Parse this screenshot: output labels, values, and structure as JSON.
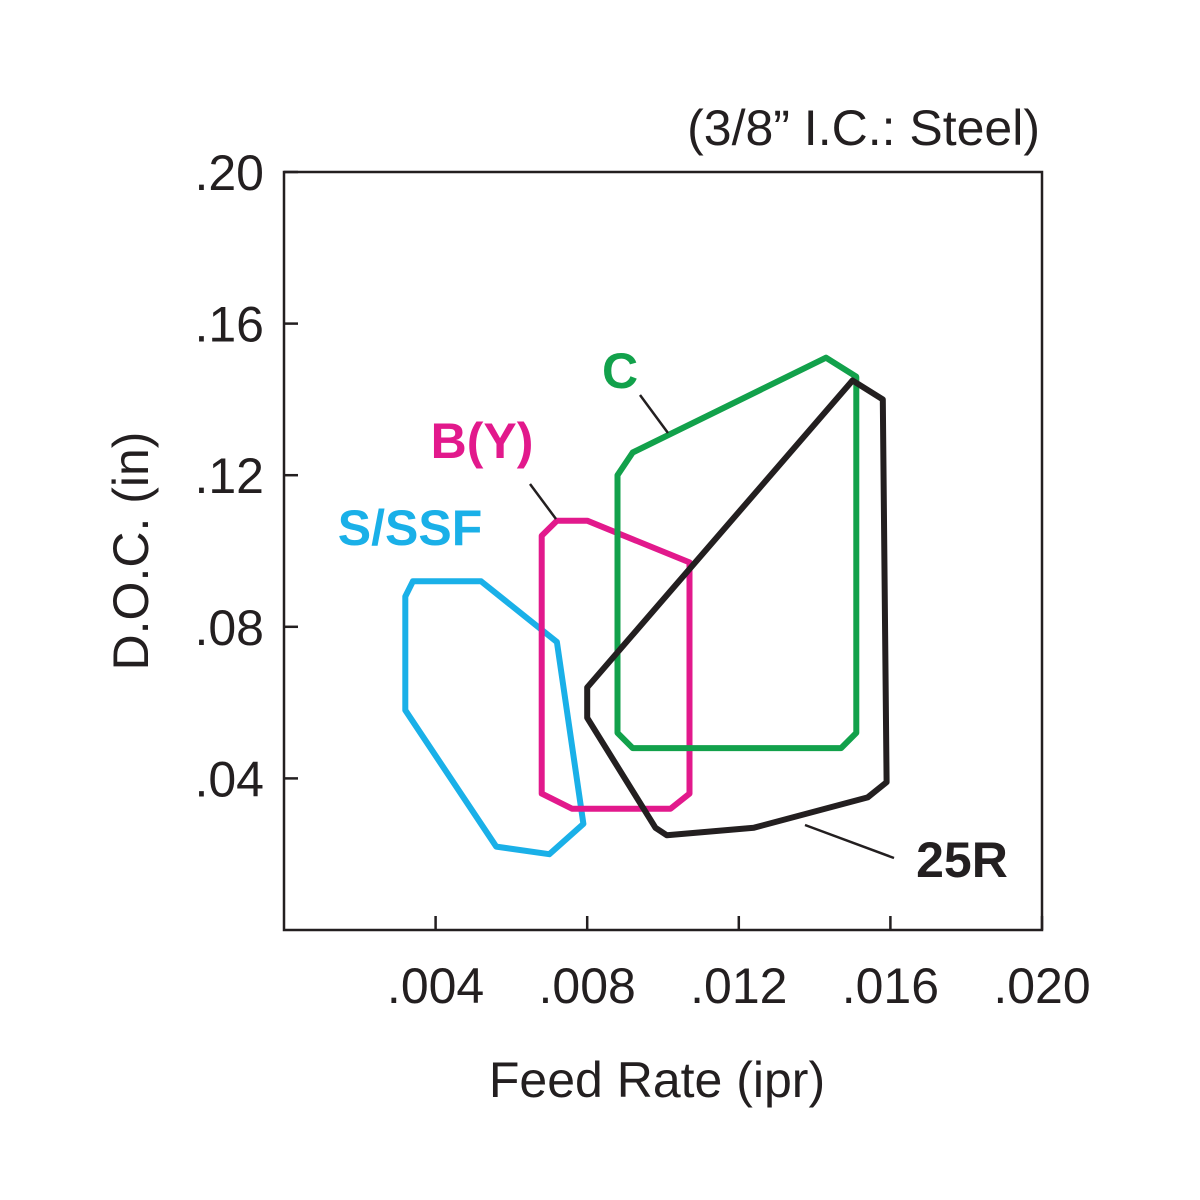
{
  "chart_data": {
    "type": "area",
    "title": "",
    "note": "(3/8” I.C.: Steel)",
    "xlabel": "Feed Rate (ipr)",
    "ylabel": "D.O.C. (in)",
    "xlim": [
      0,
      0.02
    ],
    "ylim": [
      0,
      0.2
    ],
    "x_ticks": [
      0.004,
      0.008,
      0.012,
      0.016,
      0.02
    ],
    "x_tick_labels": [
      ".004",
      ".008",
      ".012",
      ".016",
      ".020"
    ],
    "y_ticks": [
      0.04,
      0.08,
      0.12,
      0.16,
      0.2
    ],
    "y_tick_labels": [
      ".04",
      ".08",
      ".12",
      ".16",
      ".20"
    ],
    "grid": false,
    "series": [
      {
        "name": "S/SSF",
        "color": "#1ab0e8",
        "polygon": [
          [
            0.0034,
            0.092
          ],
          [
            0.0052,
            0.092
          ],
          [
            0.0072,
            0.076
          ],
          [
            0.0079,
            0.028
          ],
          [
            0.007,
            0.02
          ],
          [
            0.0056,
            0.022
          ],
          [
            0.0032,
            0.058
          ],
          [
            0.0032,
            0.088
          ]
        ]
      },
      {
        "name": "B(Y)",
        "color": "#e2198c",
        "polygon": [
          [
            0.0072,
            0.108
          ],
          [
            0.008,
            0.108
          ],
          [
            0.0107,
            0.097
          ],
          [
            0.0107,
            0.036
          ],
          [
            0.0102,
            0.032
          ],
          [
            0.0076,
            0.032
          ],
          [
            0.0068,
            0.036
          ],
          [
            0.0068,
            0.104
          ]
        ]
      },
      {
        "name": "C",
        "color": "#12a14b",
        "polygon": [
          [
            0.0143,
            0.151
          ],
          [
            0.0151,
            0.146
          ],
          [
            0.0151,
            0.052
          ],
          [
            0.0147,
            0.048
          ],
          [
            0.0092,
            0.048
          ],
          [
            0.0088,
            0.052
          ],
          [
            0.0088,
            0.12
          ],
          [
            0.0092,
            0.126
          ]
        ]
      },
      {
        "name": "25R",
        "color": "#231f20",
        "polygon": [
          [
            0.015,
            0.145
          ],
          [
            0.0158,
            0.14
          ],
          [
            0.0159,
            0.039
          ],
          [
            0.0154,
            0.035
          ],
          [
            0.0124,
            0.027
          ],
          [
            0.0101,
            0.025
          ],
          [
            0.0098,
            0.027
          ],
          [
            0.008,
            0.056
          ],
          [
            0.008,
            0.064
          ],
          [
            0.015,
            0.145
          ]
        ]
      }
    ]
  },
  "labels": {
    "sssf": "S/SSF",
    "by": "B(Y)",
    "c": "C",
    "r25": "25R"
  }
}
